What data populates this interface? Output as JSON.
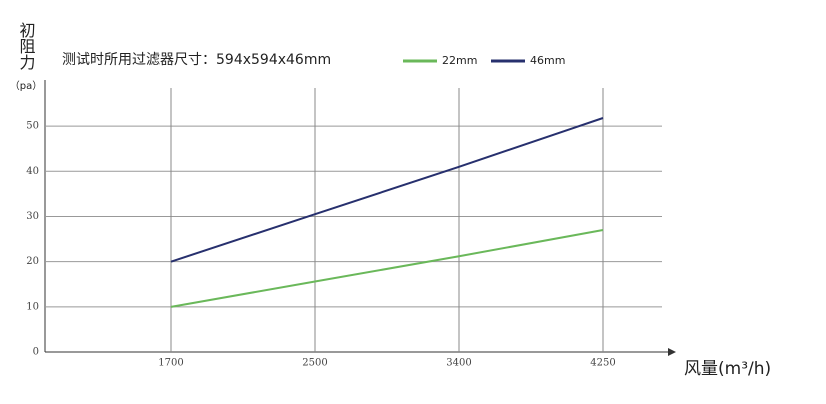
{
  "chart_data": {
    "type": "line",
    "title": "测试时所用过滤器尺寸：594x594x46mm",
    "y_label": "初阻力",
    "y_unit": "（pa）",
    "x_label": "风量(m³/h)",
    "categories": [
      "1700",
      "2500",
      "3400",
      "4250"
    ],
    "series": [
      {
        "name": "22mm",
        "color": "#6ab85a",
        "values": [
          10,
          15.6,
          21.2,
          27
        ]
      },
      {
        "name": "46mm",
        "color": "#27306e",
        "values": [
          20,
          30.5,
          41,
          51.8
        ]
      }
    ],
    "ylim": [
      0,
      58
    ],
    "yticks": [
      0,
      10,
      20,
      30,
      40,
      50
    ],
    "grid": true
  }
}
